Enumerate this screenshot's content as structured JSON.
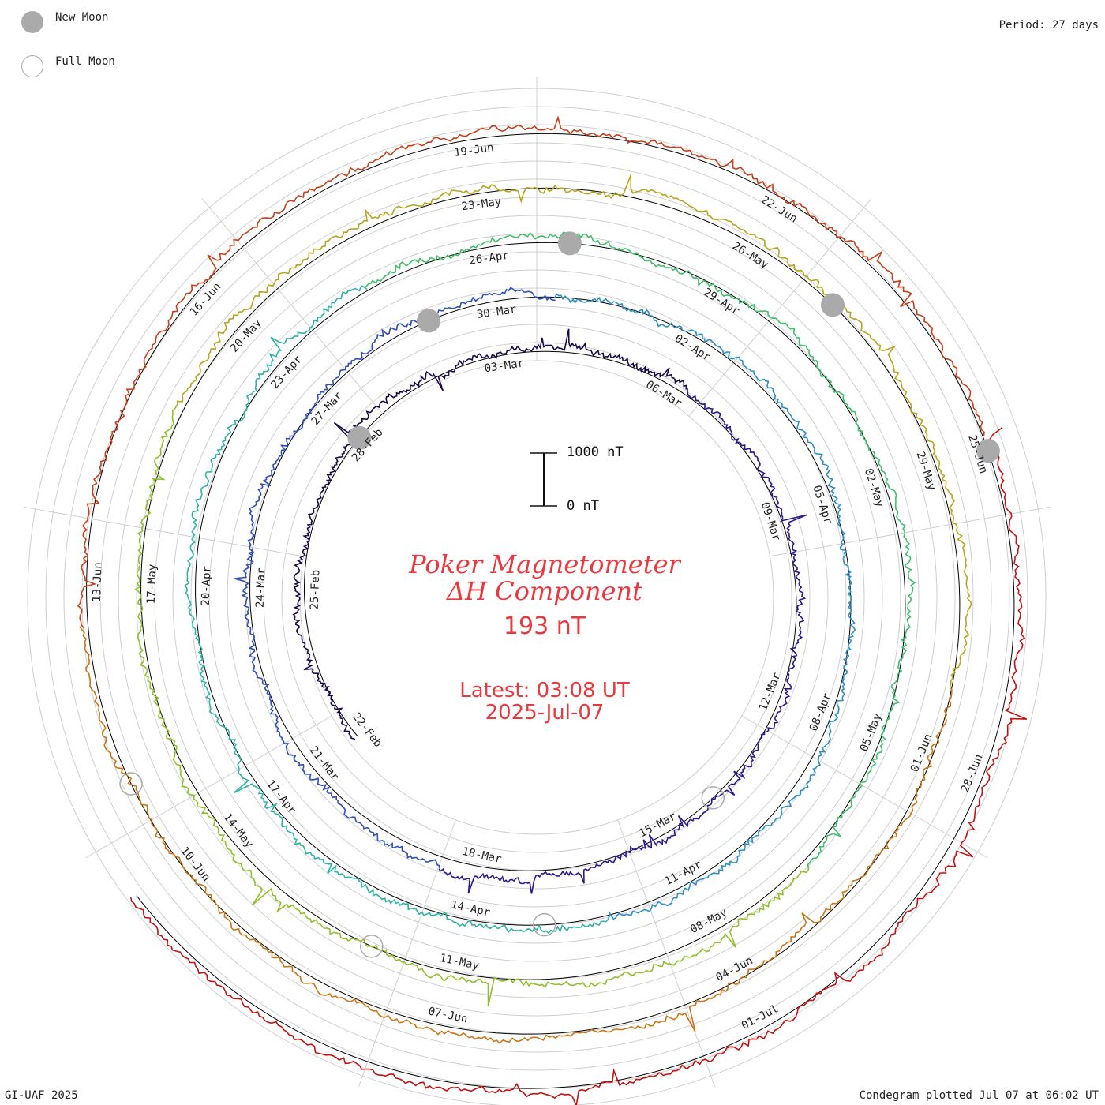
{
  "legend": {
    "new_moon": {
      "label": "New Moon",
      "color": "#aaaaaa"
    },
    "full_moon": {
      "label": "Full Moon",
      "color": "#aaaaaa"
    }
  },
  "period_label": "Period: 27 days",
  "footer_left": "GI-UAF 2025",
  "footer_right": "Condegram plotted Jul 07 at 06:02 UT",
  "title_line1": "Poker Magnetometer",
  "title_line2": "ΔH Component",
  "current_value": "193 nT",
  "latest_time": "Latest: 03:08 UT",
  "latest_date": "2025-Jul-07",
  "scale_bar": {
    "top_label": "1000 nT",
    "bottom_label": "0 nT"
  },
  "chart_data": {
    "type": "line",
    "period_days": 27,
    "start_date": "2025-Feb-22",
    "end_date": "2025-Jul-07",
    "series": [
      {
        "color": "#1a0a4a"
      },
      {
        "color": "#2b1a8c"
      },
      {
        "color": "#2f4fb8"
      },
      {
        "color": "#2e8fc4"
      },
      {
        "color": "#2fb3a3"
      },
      {
        "color": "#3fbf6a"
      },
      {
        "color": "#8fbf2a"
      },
      {
        "color": "#b5a51f"
      },
      {
        "color": "#c8761a"
      },
      {
        "color": "#c5401b"
      },
      {
        "color": "#c21313"
      }
    ],
    "date_labels": [
      "22-Feb",
      "25-Feb",
      "28-Feb",
      "03-Mar",
      "06-Mar",
      "09-Mar",
      "12-Mar",
      "15-Mar",
      "18-Mar",
      "21-Mar",
      "24-Mar",
      "27-Mar",
      "30-Mar",
      "02-Apr",
      "05-Apr",
      "08-Apr",
      "11-Apr",
      "14-Apr",
      "17-Apr",
      "20-Apr",
      "23-Apr",
      "26-Apr",
      "29-Apr",
      "02-May",
      "05-May",
      "08-May",
      "11-May",
      "14-May",
      "17-May",
      "20-May",
      "23-May",
      "26-May",
      "29-May",
      "01-Jun",
      "04-Jun",
      "07-Jun",
      "10-Jun",
      "13-Jun",
      "16-Jun",
      "19-Jun",
      "22-Jun",
      "25-Jun",
      "28-Jun",
      "01-Jul"
    ],
    "new_moon_dates": [
      "2025-Feb-28",
      "2025-Mar-29",
      "2025-Apr-27",
      "2025-May-27",
      "2025-Jun-25"
    ],
    "full_moon_dates": [
      "2025-Mar-14",
      "2025-Apr-13",
      "2025-May-12",
      "2025-Jun-11"
    ],
    "y_units": "nT",
    "scale_nT": 1000
  }
}
